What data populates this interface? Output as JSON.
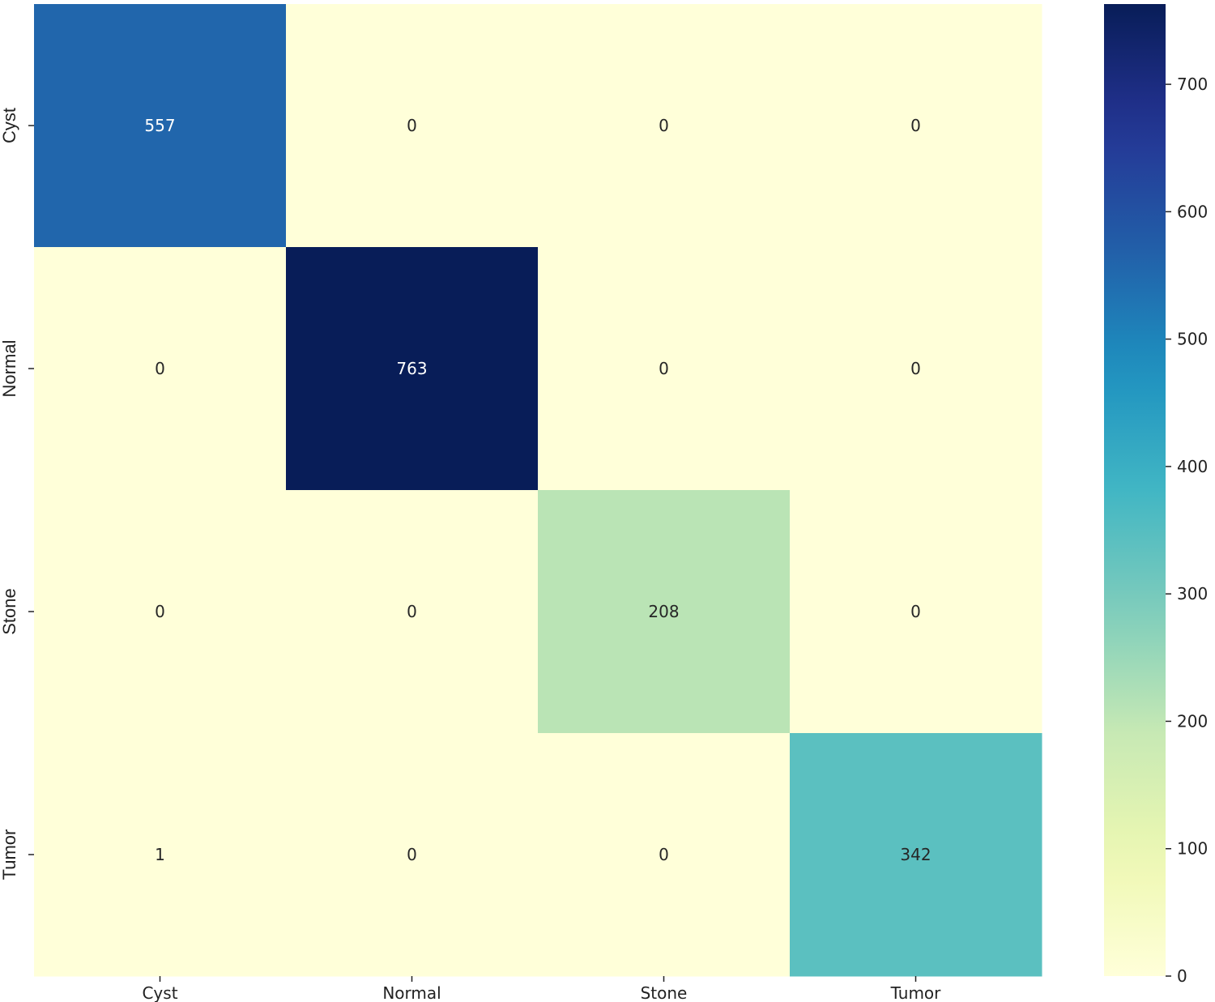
{
  "chart_data": {
    "type": "heatmap",
    "title": "",
    "xlabel": "",
    "ylabel": "",
    "x_categories": [
      "Cyst",
      "Normal",
      "Stone",
      "Tumor"
    ],
    "y_categories": [
      "Cyst",
      "Normal",
      "Stone",
      "Tumor"
    ],
    "matrix": [
      [
        557,
        0,
        0,
        0
      ],
      [
        0,
        763,
        0,
        0
      ],
      [
        0,
        0,
        208,
        0
      ],
      [
        1,
        0,
        0,
        342
      ]
    ],
    "colormap": "YlGnBu",
    "colorbar": {
      "range": [
        0,
        763
      ],
      "ticks": [
        0,
        100,
        200,
        300,
        400,
        500,
        600,
        700
      ],
      "tick_labels": [
        "0",
        "100",
        "200",
        "300",
        "400",
        "500",
        "600",
        "700"
      ]
    },
    "annotation_colors": {
      "light": "#ffffff",
      "dark": "#262626"
    }
  }
}
